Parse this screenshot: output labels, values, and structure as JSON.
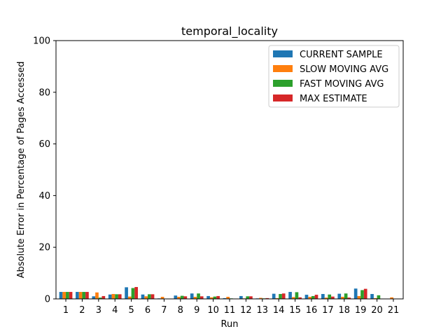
{
  "chart_data": {
    "type": "bar",
    "title": "temporal_locality",
    "xlabel": "Run",
    "ylabel": "Absolute Error in Percentage of Pages Accessed",
    "ylim": [
      0,
      100
    ],
    "yticks": [
      0,
      20,
      40,
      60,
      80,
      100
    ],
    "grid": false,
    "legend_position": "top-right",
    "categories": [
      "1",
      "2",
      "3",
      "4",
      "5",
      "6",
      "7",
      "8",
      "9",
      "10",
      "11",
      "12",
      "13",
      "14",
      "15",
      "16",
      "17",
      "18",
      "19",
      "20",
      "21"
    ],
    "series": [
      {
        "name": "CURRENT SAMPLE",
        "color": "#1f77b4",
        "values": [
          2.7,
          2.7,
          1.0,
          1.7,
          4.5,
          1.7,
          0.2,
          1.3,
          2.1,
          1.1,
          0.3,
          1.1,
          0.2,
          2.0,
          2.7,
          1.6,
          1.9,
          2.0,
          4.0,
          1.9,
          0.0
        ]
      },
      {
        "name": "SLOW MOVING AVG",
        "color": "#ff7f0e",
        "values": [
          2.7,
          2.7,
          2.5,
          1.9,
          0.9,
          1.0,
          0.8,
          0.8,
          0.8,
          0.6,
          0.8,
          0.2,
          0.4,
          0.3,
          0.7,
          0.8,
          0.5,
          0.8,
          1.1,
          0.3,
          0.6
        ]
      },
      {
        "name": "FAST MOVING AVG",
        "color": "#2ca02c",
        "values": [
          2.7,
          2.7,
          0.5,
          1.8,
          4.2,
          1.8,
          0.1,
          1.2,
          2.1,
          0.9,
          0.2,
          1.0,
          0.2,
          1.9,
          2.6,
          1.1,
          1.7,
          2.1,
          3.4,
          1.4,
          0.1
        ]
      },
      {
        "name": "MAX ESTIMATE",
        "color": "#d62728",
        "values": [
          2.7,
          2.7,
          1.1,
          1.8,
          4.6,
          1.8,
          0.1,
          1.0,
          1.0,
          1.1,
          0.1,
          1.0,
          0.3,
          2.1,
          0.6,
          1.6,
          0.9,
          0.5,
          3.9,
          0.0,
          0.0
        ]
      }
    ]
  }
}
